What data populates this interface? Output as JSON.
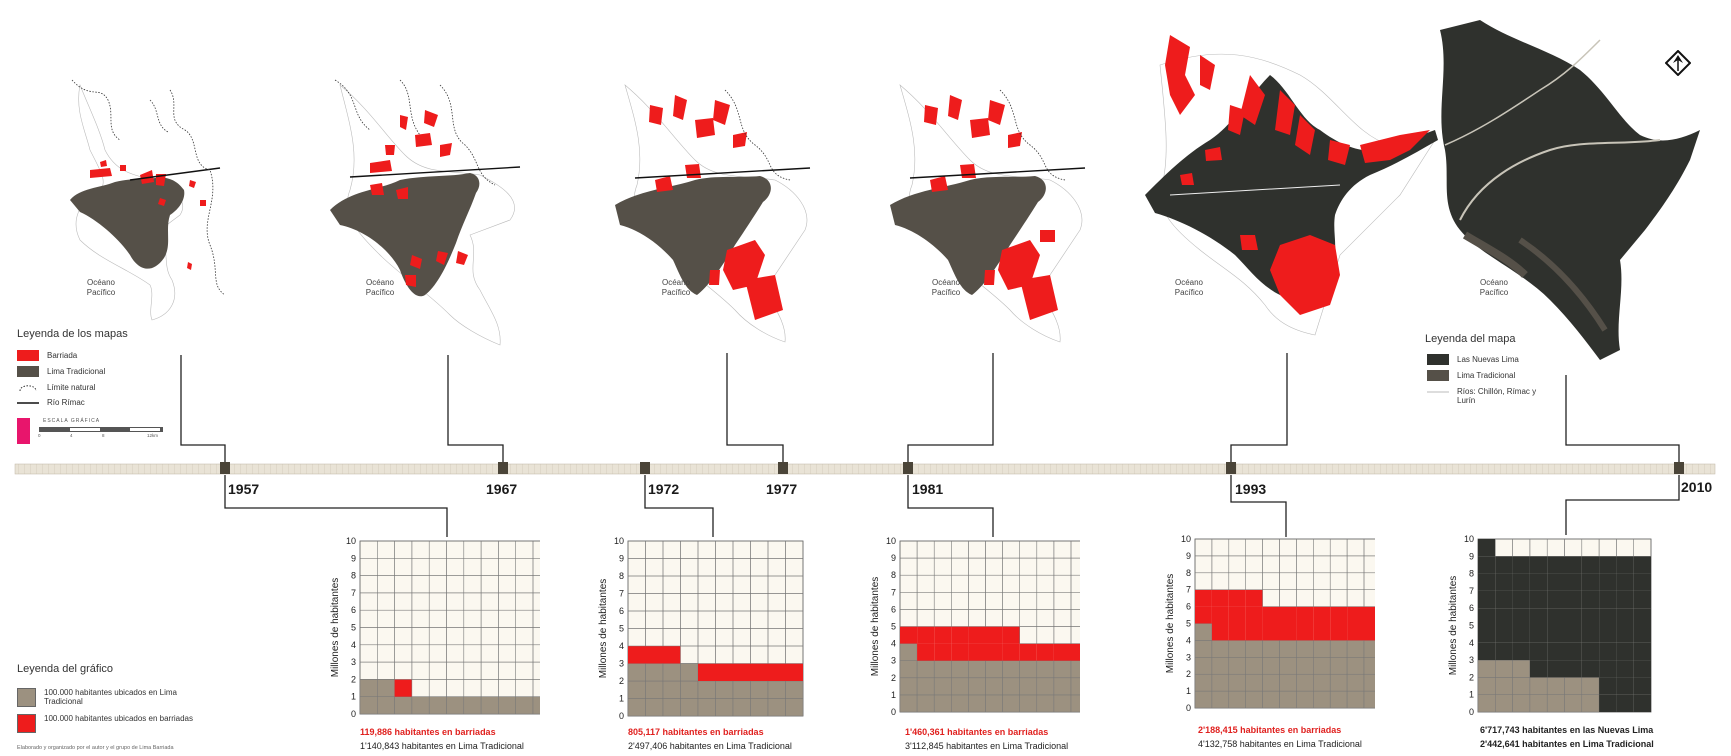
{
  "maps": [
    {
      "ocean": "Océano\nPacífico"
    },
    {
      "ocean": "Océano\nPacífico"
    },
    {
      "ocean": "Océano\nPacífico"
    },
    {
      "ocean": "Océano\nPacífico"
    },
    {
      "ocean": "Océano\nPacífico"
    },
    {
      "ocean": "Océano\nPacífico"
    }
  ],
  "map_legend": {
    "title": "Leyenda de los mapas",
    "items": [
      {
        "label": "Barriada",
        "color": "#ee1c1c"
      },
      {
        "label": "Lima Tradicional",
        "color": "#555048"
      },
      {
        "label": "Límite natural"
      },
      {
        "label": "Río Rímac"
      }
    ],
    "scale_label": "ESCALA GRÁFICA",
    "scale_ticks": [
      "0",
      "4",
      "8",
      "12km"
    ]
  },
  "map_legend_2010": {
    "title": "Leyenda del mapa",
    "items": [
      {
        "label": "Las Nuevas Lima",
        "color": "#2f312d"
      },
      {
        "label": "Lima Tradicional",
        "color": "#555048"
      },
      {
        "label": "Ríos: Chillón, Rímac y Lurín"
      }
    ]
  },
  "timeline": {
    "years": [
      "1957",
      "1967",
      "1972",
      "1977",
      "1981",
      "1993",
      "2010"
    ]
  },
  "chart_legend": {
    "title": "Leyenda del gráfico",
    "items": [
      {
        "label": "100.000 habitantes ubicados en Lima Tradicional",
        "color": "#9c9180"
      },
      {
        "label": "100.000 habitantes ubicados en barriadas",
        "color": "#ee1c1c"
      }
    ]
  },
  "credit": "Elaborado y organizado por el autor y el grupo de Lima Barriada",
  "chart_data": [
    {
      "type": "waffle",
      "year": "1957",
      "ylabel": "Millones de habitantes",
      "ylim": [
        0,
        10
      ],
      "yticks": [
        "0",
        "1",
        "2",
        "3",
        "4",
        "5",
        "6",
        "7",
        "8",
        "9",
        "10"
      ],
      "columns": [
        2,
        2,
        1,
        1,
        1,
        1,
        1,
        1,
        1,
        1,
        1
      ],
      "red_columns": [
        0,
        0,
        1,
        0,
        0,
        0,
        0,
        0,
        0,
        0,
        0
      ],
      "caption_red": "119,886 habitantes en barriadas",
      "caption_dark": "1'140,843 habitantes en Lima Tradicional"
    },
    {
      "type": "waffle",
      "year": "1972",
      "ylabel": "Millones de habitantes",
      "ylim": [
        0,
        10
      ],
      "yticks": [
        "0",
        "1",
        "2",
        "3",
        "4",
        "5",
        "6",
        "7",
        "8",
        "9",
        "10"
      ],
      "columns": [
        3,
        3,
        3,
        3,
        2,
        2,
        2,
        2,
        2,
        2
      ],
      "red_columns": [
        1,
        1,
        1,
        0,
        1,
        1,
        1,
        1,
        1,
        1
      ],
      "caption_red": "805,117 habitantes en barriadas",
      "caption_dark": "2'497,406 habitantes en Lima Tradicional"
    },
    {
      "type": "waffle",
      "year": "1981",
      "ylabel": "Millones de habitantes",
      "ylim": [
        0,
        10
      ],
      "yticks": [
        "0",
        "1",
        "2",
        "3",
        "4",
        "5",
        "6",
        "7",
        "8",
        "9",
        "10"
      ],
      "columns": [
        4,
        3,
        3,
        3,
        3,
        3,
        3,
        3,
        3,
        3,
        3
      ],
      "red_columns": [
        1,
        2,
        2,
        2,
        2,
        2,
        2,
        1,
        1,
        1,
        1
      ],
      "caption_red": "1'460,361 habitantes en barriadas",
      "caption_dark": "3'112,845 habitantes en Lima Tradicional"
    },
    {
      "type": "waffle",
      "year": "1993",
      "ylabel": "Millones de habitantes",
      "ylim": [
        0,
        10
      ],
      "yticks": [
        "0",
        "1",
        "2",
        "3",
        "4",
        "5",
        "6",
        "7",
        "8",
        "9",
        "10"
      ],
      "columns": [
        5,
        4,
        4,
        4,
        4,
        4,
        4,
        4,
        4,
        4,
        4
      ],
      "red_columns": [
        2,
        3,
        3,
        3,
        2,
        2,
        2,
        2,
        2,
        2,
        2
      ],
      "caption_red": "2'188,415 habitantes en barriadas",
      "caption_dark": "4'132,758 habitantes en Lima Tradicional"
    },
    {
      "type": "waffle",
      "year": "2010",
      "ylabel": "Millones de habitantes",
      "ylim": [
        0,
        10
      ],
      "yticks": [
        "0",
        "1",
        "2",
        "3",
        "4",
        "5",
        "6",
        "7",
        "8",
        "9",
        "10"
      ],
      "columns": [
        3,
        3,
        3,
        2,
        2,
        2,
        2,
        0,
        0,
        0
      ],
      "dark_columns": [
        7,
        6,
        6,
        7,
        7,
        7,
        7,
        9,
        9,
        9
      ],
      "caption_light": "6'717,743 habitantes en las Nuevas Lima",
      "caption_dark": "2'442,641 habitantes en Lima Tradicional"
    }
  ]
}
